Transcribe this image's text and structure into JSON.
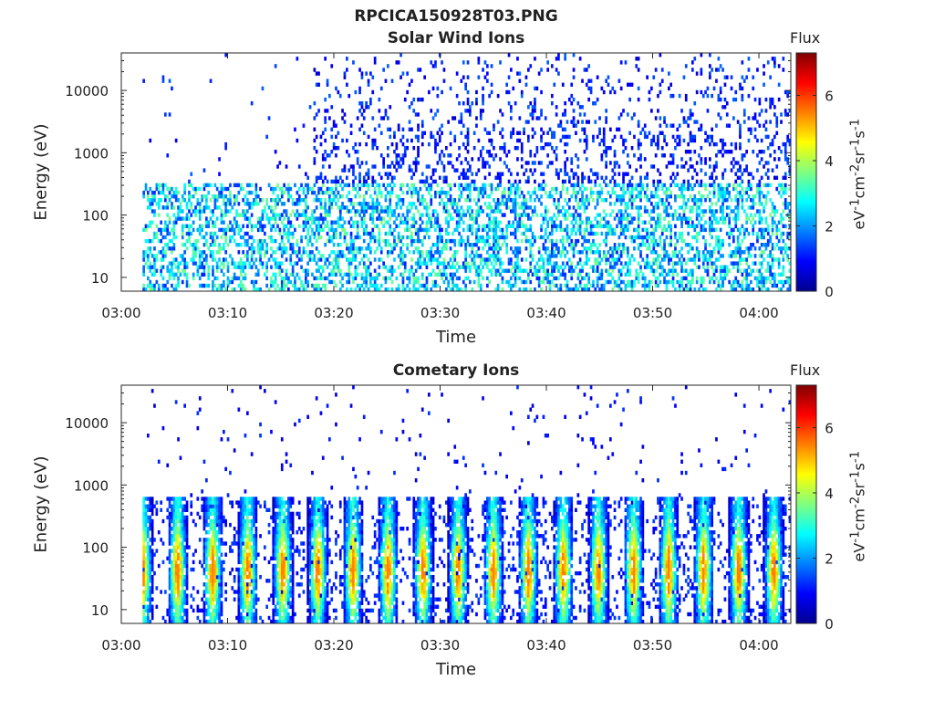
{
  "title": "RPCICA150928T03.PNG",
  "colorbar": {
    "label": "Flux",
    "units_html": "eV<sup>-1</sup>cm<sup>-2</sup>sr<sup>-1</sup>s<sup>-1</sup>",
    "units_text": "eV-1cm-2sr-1s-1",
    "range": [
      0,
      7.3
    ],
    "ticks": [
      "0",
      "2",
      "4",
      "6"
    ],
    "colormap": "jet"
  },
  "chart_data": [
    {
      "type": "heatmap",
      "title": "Solar Wind Ions",
      "xlabel": "Time",
      "ylabel": "Energy (eV)",
      "yscale": "log",
      "ylim": [
        6,
        40000
      ],
      "xlim": [
        "03:00",
        "04:03"
      ],
      "xticks": [
        "03:00",
        "03:10",
        "03:20",
        "03:30",
        "03:40",
        "03:50",
        "04:00"
      ],
      "yticks": [
        "10",
        "100",
        "1000",
        "10000"
      ],
      "data_start": "03:02",
      "z_range": [
        0,
        7.3
      ],
      "description": "sparse low-flux ions spread over 100 eV to 30 keV after 03:17, with denser moderate flux below 300 eV"
    },
    {
      "type": "heatmap",
      "title": "Cometary Ions",
      "xlabel": "Time",
      "ylabel": "Energy (eV)",
      "yscale": "log",
      "ylim": [
        6,
        40000
      ],
      "xlim": [
        "03:00",
        "04:03"
      ],
      "xticks": [
        "03:00",
        "03:10",
        "03:20",
        "03:30",
        "03:40",
        "03:50",
        "04:00"
      ],
      "yticks": [
        "10",
        "100",
        "1000",
        "10000"
      ],
      "data_start": "03:02",
      "z_range": [
        0,
        7.3
      ],
      "description": "periodic high-flux bursts between 10 and 500 eV roughly every 3 minutes, peak flux near 40 eV"
    }
  ]
}
